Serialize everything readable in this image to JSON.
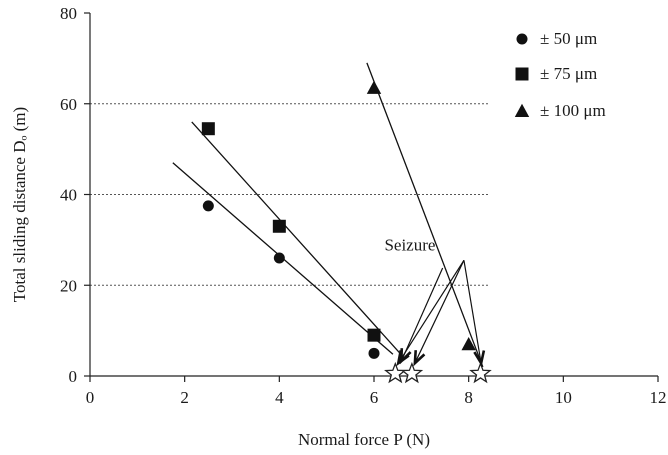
{
  "chart_data": {
    "type": "scatter",
    "xlabel": "Normal force P (N)",
    "ylabel": "Total sliding distance Dₒ (m)",
    "xlim": [
      0,
      12
    ],
    "ylim": [
      0,
      80
    ],
    "xticks": [
      "0",
      "2",
      "4",
      "6",
      "8",
      "10",
      "12"
    ],
    "yticks": [
      "0",
      "20",
      "40",
      "60",
      "80"
    ],
    "grid": "horizontal dotted at y = 20, 40, 60",
    "legend_position": "top-right",
    "series": [
      {
        "name": "± 50 μm",
        "marker": "circle",
        "points": [
          [
            2.5,
            37.5
          ],
          [
            4.0,
            26.0
          ],
          [
            6.0,
            5.0
          ]
        ],
        "seizure": [
          6.45,
          0.5
        ],
        "fit_line": [
          [
            1.75,
            47.0
          ],
          [
            6.4,
            4.8
          ]
        ]
      },
      {
        "name": "± 75 μm",
        "marker": "square",
        "points": [
          [
            2.5,
            54.5
          ],
          [
            4.0,
            33.0
          ],
          [
            6.0,
            9.0
          ]
        ],
        "seizure": [
          6.8,
          0.5
        ],
        "fit_line": [
          [
            2.15,
            56.0
          ],
          [
            6.55,
            5.0
          ]
        ]
      },
      {
        "name": "± 100 μm",
        "marker": "triangle",
        "points": [
          [
            6.0,
            63.5
          ],
          [
            8.0,
            7.0
          ]
        ],
        "seizure": [
          8.25,
          0.5
        ],
        "fit_line": [
          [
            5.85,
            69.0
          ],
          [
            8.3,
            2.0
          ]
        ]
      }
    ],
    "annotation": {
      "text": "Seizure",
      "anchor": [
        7.9,
        25.5
      ],
      "arrows_to": [
        [
          6.45,
          1.5
        ],
        [
          6.8,
          1.5
        ],
        [
          8.2,
          1.5
        ]
      ],
      "extra_arrow_from": [
        7.45,
        23.8
      ],
      "extra_arrow_to": [
        6.45,
        1.5
      ]
    },
    "legend": [
      {
        "marker": "circle",
        "label": "± 50 μm"
      },
      {
        "marker": "square",
        "label": "± 75 μm"
      },
      {
        "marker": "triangle",
        "label": "± 100 μm"
      }
    ]
  }
}
